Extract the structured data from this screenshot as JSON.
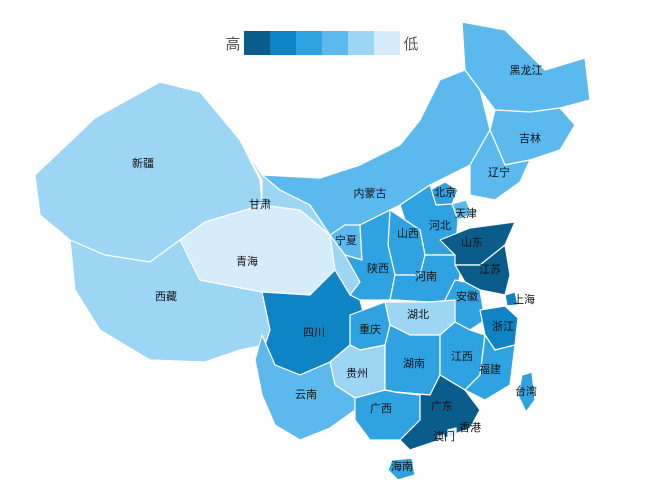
{
  "legend": {
    "high_label": "高",
    "low_label": "低",
    "swatches": [
      "#0a5d8a",
      "#0f84c4",
      "#2fa3e2",
      "#5cb9ee",
      "#9dd5f5",
      "#d6ecfb"
    ]
  },
  "provinces": [
    {
      "key": "xinjiang",
      "label": "新疆",
      "level": 4
    },
    {
      "key": "xizang",
      "label": "西藏",
      "level": 4
    },
    {
      "key": "qinghai",
      "label": "青海",
      "level": 5
    },
    {
      "key": "gansu",
      "label": "甘肃",
      "level": 4
    },
    {
      "key": "neimenggu",
      "label": "内蒙古",
      "level": 3
    },
    {
      "key": "heilongjiang",
      "label": "黑龙江",
      "level": 3
    },
    {
      "key": "jilin",
      "label": "吉林",
      "level": 3
    },
    {
      "key": "liaoning",
      "label": "辽宁",
      "level": 3
    },
    {
      "key": "beijing",
      "label": "北京",
      "level": 2
    },
    {
      "key": "tianjin",
      "label": "天津",
      "level": 3
    },
    {
      "key": "hebei",
      "label": "河北",
      "level": 2
    },
    {
      "key": "shanxi",
      "label": "山西",
      "level": 2
    },
    {
      "key": "ningxia",
      "label": "宁夏",
      "level": 3
    },
    {
      "key": "shaanxi",
      "label": "陕西",
      "level": 2
    },
    {
      "key": "henan",
      "label": "河南",
      "level": 2
    },
    {
      "key": "shandong",
      "label": "山东",
      "level": 0
    },
    {
      "key": "jiangsu",
      "label": "江苏",
      "level": 0
    },
    {
      "key": "anhui",
      "label": "安徽",
      "level": 2
    },
    {
      "key": "shanghai",
      "label": "上海",
      "level": 1
    },
    {
      "key": "zhejiang",
      "label": "浙江",
      "level": 1
    },
    {
      "key": "hubei",
      "label": "湖北",
      "level": 4
    },
    {
      "key": "sichuan",
      "label": "四川",
      "level": 1
    },
    {
      "key": "chongqing",
      "label": "重庆",
      "level": 2
    },
    {
      "key": "guizhou",
      "label": "贵州",
      "level": 4
    },
    {
      "key": "hunan",
      "label": "湖南",
      "level": 2
    },
    {
      "key": "jiangxi",
      "label": "江西",
      "level": 2
    },
    {
      "key": "fujian",
      "label": "福建",
      "level": 2
    },
    {
      "key": "yunnan",
      "label": "云南",
      "level": 3
    },
    {
      "key": "guangxi",
      "label": "广西",
      "level": 2
    },
    {
      "key": "guangdong",
      "label": "广东",
      "level": 0
    },
    {
      "key": "hainan",
      "label": "海南",
      "level": 2
    },
    {
      "key": "taiwan",
      "label": "台湾",
      "level": 2
    },
    {
      "key": "xianggang",
      "label": "香港",
      "level": 5
    },
    {
      "key": "aomen",
      "label": "澳门",
      "level": 5
    }
  ]
}
